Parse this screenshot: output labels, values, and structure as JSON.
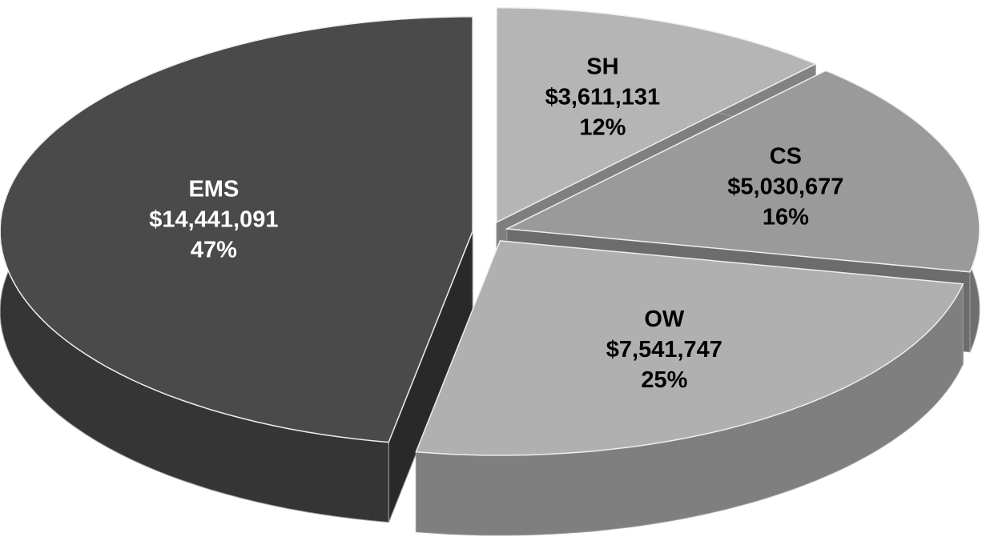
{
  "chart_data": {
    "type": "pie3d",
    "categories": [
      "SH",
      "CS",
      "OW",
      "EMS"
    ],
    "values": [
      3611131,
      5030677,
      7541747,
      14441091
    ],
    "value_labels": [
      "$3,611,131",
      "$5,030,677",
      "$7,541,747",
      "$14,441,091"
    ],
    "percent_labels": [
      "12%",
      "16%",
      "25%",
      "47%"
    ],
    "colors": [
      "#b5b5b5",
      "#9a9a9a",
      "#b0b0b0",
      "#4a4a4a"
    ],
    "label_colors": [
      "#000000",
      "#000000",
      "#000000",
      "#ffffff"
    ]
  }
}
